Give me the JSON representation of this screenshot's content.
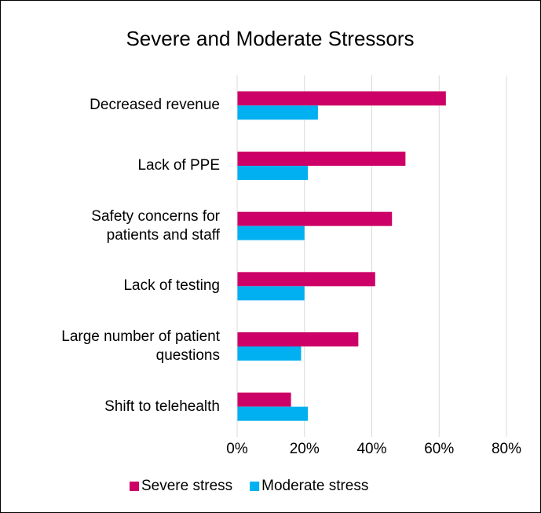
{
  "chart_data": {
    "type": "bar",
    "orientation": "horizontal",
    "title": "Severe and Moderate Stressors",
    "categories": [
      "Decreased revenue",
      "Lack of PPE",
      "Safety concerns for\npatients and staff",
      "Lack of testing",
      "Large number of patient\nquestions",
      "Shift to telehealth"
    ],
    "series": [
      {
        "name": "Severe stress",
        "color": "#cc0066",
        "values": [
          62,
          50,
          46,
          41,
          36,
          16
        ]
      },
      {
        "name": "Moderate stress",
        "color": "#00b0f0",
        "values": [
          24,
          21,
          20,
          20,
          19,
          21
        ]
      }
    ],
    "xlim": [
      0,
      80
    ],
    "xticks": [
      {
        "value": 0,
        "label": "0%"
      },
      {
        "value": 20,
        "label": "20%"
      },
      {
        "value": 40,
        "label": "40%"
      },
      {
        "value": 60,
        "label": "60%"
      },
      {
        "value": 80,
        "label": "80%"
      }
    ],
    "grid": true,
    "legend": "bottom"
  }
}
